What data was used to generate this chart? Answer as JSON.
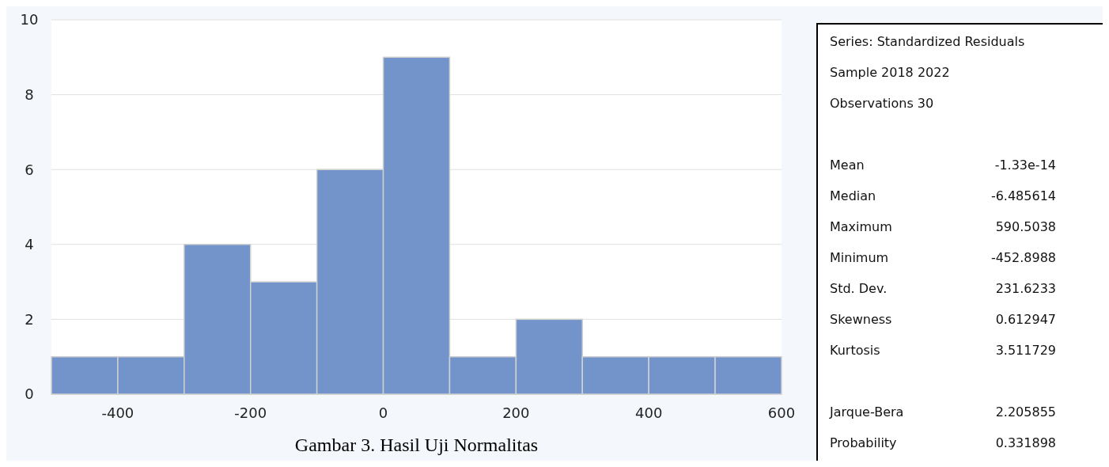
{
  "chart_data": [
    {
      "type": "histogram",
      "bins": [
        -500,
        -400,
        -300,
        -200,
        -100,
        0,
        100,
        200,
        300,
        400,
        500,
        600
      ],
      "values": [
        1,
        1,
        4,
        3,
        6,
        9,
        1,
        2,
        1,
        1,
        1
      ],
      "color": "#7394cb",
      "xlim": [
        -500,
        600
      ],
      "xticks": [
        -400,
        -200,
        0,
        200,
        400,
        600
      ],
      "ylim": [
        0,
        10
      ],
      "yticks": [
        0,
        2,
        4,
        6,
        8,
        10
      ],
      "grid": "y",
      "annotations": [
        "Gambar 3. Hasil Uji Normalitas"
      ]
    },
    {
      "type": "other",
      "annotations": [
        "Series: Standardized Residuals",
        "Sample 2018 2022",
        "Observations 30",
        "Mean",
        "-1.33e-14",
        "Median",
        "-6.485614",
        "Maximum",
        "590.5038",
        "Minimum",
        "-452.8988",
        "Std. Dev.",
        "231.6233",
        "Skewness",
        "0.612947",
        "Kurtosis",
        "3.511729",
        "Jarque-Bera",
        "2.205855",
        "Probability",
        "0.331898"
      ]
    }
  ]
}
